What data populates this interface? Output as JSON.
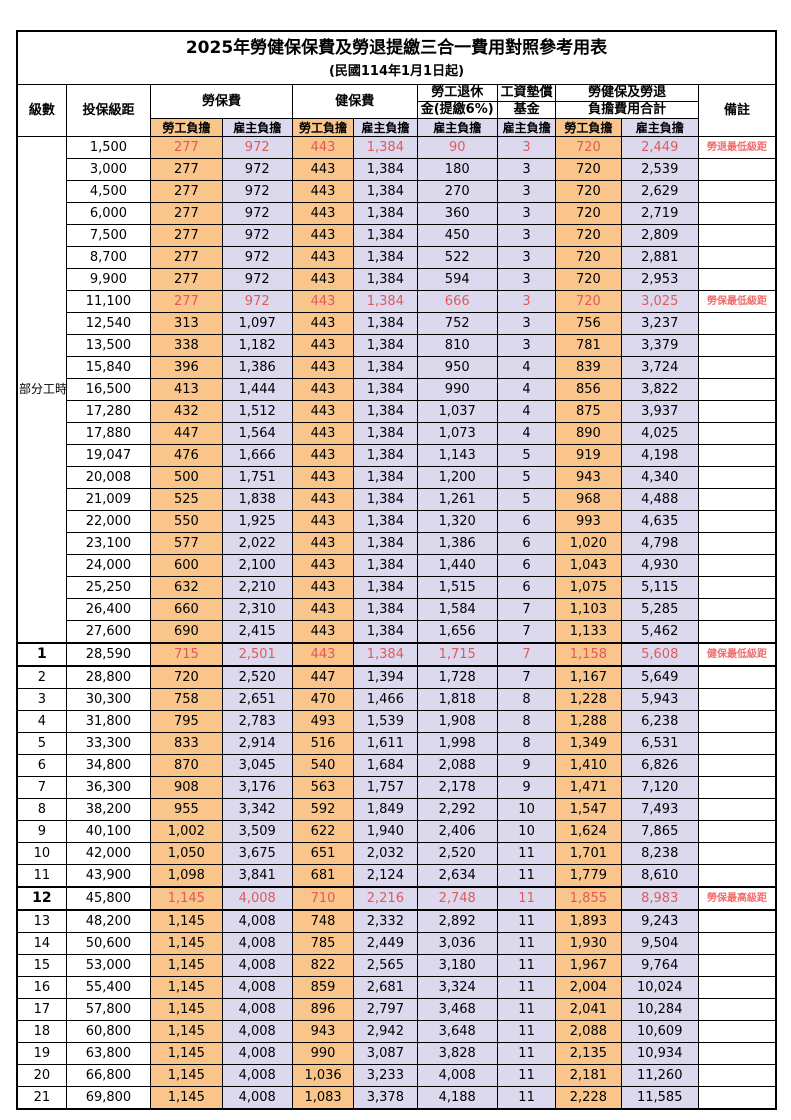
{
  "title": "2025年勞健保保費及勞退提繳三合一費用對照參考用表",
  "subtitle": "(民國114年1月1日起)",
  "header": {
    "level": "級數",
    "bracket": "投保級距",
    "labor_ins": "勞保費",
    "health_ins": "健保費",
    "pension_line1": "勞工退休",
    "pension_line2": "金(提繳6%)",
    "wage_fund_line1": "工資墊償",
    "wage_fund_line2": "基金",
    "total_line1": "勞健保及勞退",
    "total_line2": "負擔費用合計",
    "remark": "備註",
    "employee": "勞工負擔",
    "employer": "雇主負擔"
  },
  "part_time_label": "部分工時",
  "part_time_rowspan": 23,
  "colors": {
    "employee_bg": "#f9c58a",
    "employer_bg": "#dcd9ee",
    "red_value": "#e05a5a",
    "red_remark": "#f26d6d",
    "border": "#000000",
    "background": "#ffffff"
  },
  "rows": [
    {
      "level": "",
      "bracket": "1,500",
      "li_emp": "277",
      "li_er": "972",
      "hi_emp": "443",
      "hi_er": "1,384",
      "pension": "90",
      "fund": "3",
      "tot_emp": "720",
      "tot_er": "2,449",
      "remark": "勞退最低級距",
      "red": true
    },
    {
      "level": "",
      "bracket": "3,000",
      "li_emp": "277",
      "li_er": "972",
      "hi_emp": "443",
      "hi_er": "1,384",
      "pension": "180",
      "fund": "3",
      "tot_emp": "720",
      "tot_er": "2,539",
      "remark": ""
    },
    {
      "level": "",
      "bracket": "4,500",
      "li_emp": "277",
      "li_er": "972",
      "hi_emp": "443",
      "hi_er": "1,384",
      "pension": "270",
      "fund": "3",
      "tot_emp": "720",
      "tot_er": "2,629",
      "remark": ""
    },
    {
      "level": "",
      "bracket": "6,000",
      "li_emp": "277",
      "li_er": "972",
      "hi_emp": "443",
      "hi_er": "1,384",
      "pension": "360",
      "fund": "3",
      "tot_emp": "720",
      "tot_er": "2,719",
      "remark": ""
    },
    {
      "level": "",
      "bracket": "7,500",
      "li_emp": "277",
      "li_er": "972",
      "hi_emp": "443",
      "hi_er": "1,384",
      "pension": "450",
      "fund": "3",
      "tot_emp": "720",
      "tot_er": "2,809",
      "remark": ""
    },
    {
      "level": "",
      "bracket": "8,700",
      "li_emp": "277",
      "li_er": "972",
      "hi_emp": "443",
      "hi_er": "1,384",
      "pension": "522",
      "fund": "3",
      "tot_emp": "720",
      "tot_er": "2,881",
      "remark": ""
    },
    {
      "level": "",
      "bracket": "9,900",
      "li_emp": "277",
      "li_er": "972",
      "hi_emp": "443",
      "hi_er": "1,384",
      "pension": "594",
      "fund": "3",
      "tot_emp": "720",
      "tot_er": "2,953",
      "remark": ""
    },
    {
      "level": "",
      "bracket": "11,100",
      "li_emp": "277",
      "li_er": "972",
      "hi_emp": "443",
      "hi_er": "1,384",
      "pension": "666",
      "fund": "3",
      "tot_emp": "720",
      "tot_er": "3,025",
      "remark": "勞保最低級距",
      "red": true
    },
    {
      "level": "",
      "bracket": "12,540",
      "li_emp": "313",
      "li_er": "1,097",
      "hi_emp": "443",
      "hi_er": "1,384",
      "pension": "752",
      "fund": "3",
      "tot_emp": "756",
      "tot_er": "3,237",
      "remark": ""
    },
    {
      "level": "",
      "bracket": "13,500",
      "li_emp": "338",
      "li_er": "1,182",
      "hi_emp": "443",
      "hi_er": "1,384",
      "pension": "810",
      "fund": "3",
      "tot_emp": "781",
      "tot_er": "3,379",
      "remark": ""
    },
    {
      "level": "",
      "bracket": "15,840",
      "li_emp": "396",
      "li_er": "1,386",
      "hi_emp": "443",
      "hi_er": "1,384",
      "pension": "950",
      "fund": "4",
      "tot_emp": "839",
      "tot_er": "3,724",
      "remark": ""
    },
    {
      "level": "",
      "bracket": "16,500",
      "li_emp": "413",
      "li_er": "1,444",
      "hi_emp": "443",
      "hi_er": "1,384",
      "pension": "990",
      "fund": "4",
      "tot_emp": "856",
      "tot_er": "3,822",
      "remark": ""
    },
    {
      "level": "",
      "bracket": "17,280",
      "li_emp": "432",
      "li_er": "1,512",
      "hi_emp": "443",
      "hi_er": "1,384",
      "pension": "1,037",
      "fund": "4",
      "tot_emp": "875",
      "tot_er": "3,937",
      "remark": ""
    },
    {
      "level": "",
      "bracket": "17,880",
      "li_emp": "447",
      "li_er": "1,564",
      "hi_emp": "443",
      "hi_er": "1,384",
      "pension": "1,073",
      "fund": "4",
      "tot_emp": "890",
      "tot_er": "4,025",
      "remark": ""
    },
    {
      "level": "",
      "bracket": "19,047",
      "li_emp": "476",
      "li_er": "1,666",
      "hi_emp": "443",
      "hi_er": "1,384",
      "pension": "1,143",
      "fund": "5",
      "tot_emp": "919",
      "tot_er": "4,198",
      "remark": ""
    },
    {
      "level": "",
      "bracket": "20,008",
      "li_emp": "500",
      "li_er": "1,751",
      "hi_emp": "443",
      "hi_er": "1,384",
      "pension": "1,200",
      "fund": "5",
      "tot_emp": "943",
      "tot_er": "4,340",
      "remark": ""
    },
    {
      "level": "",
      "bracket": "21,009",
      "li_emp": "525",
      "li_er": "1,838",
      "hi_emp": "443",
      "hi_er": "1,384",
      "pension": "1,261",
      "fund": "5",
      "tot_emp": "968",
      "tot_er": "4,488",
      "remark": ""
    },
    {
      "level": "",
      "bracket": "22,000",
      "li_emp": "550",
      "li_er": "1,925",
      "hi_emp": "443",
      "hi_er": "1,384",
      "pension": "1,320",
      "fund": "6",
      "tot_emp": "993",
      "tot_er": "4,635",
      "remark": ""
    },
    {
      "level": "",
      "bracket": "23,100",
      "li_emp": "577",
      "li_er": "2,022",
      "hi_emp": "443",
      "hi_er": "1,384",
      "pension": "1,386",
      "fund": "6",
      "tot_emp": "1,020",
      "tot_er": "4,798",
      "remark": ""
    },
    {
      "level": "",
      "bracket": "24,000",
      "li_emp": "600",
      "li_er": "2,100",
      "hi_emp": "443",
      "hi_er": "1,384",
      "pension": "1,440",
      "fund": "6",
      "tot_emp": "1,043",
      "tot_er": "4,930",
      "remark": ""
    },
    {
      "level": "",
      "bracket": "25,250",
      "li_emp": "632",
      "li_er": "2,210",
      "hi_emp": "443",
      "hi_er": "1,384",
      "pension": "1,515",
      "fund": "6",
      "tot_emp": "1,075",
      "tot_er": "5,115",
      "remark": ""
    },
    {
      "level": "",
      "bracket": "26,400",
      "li_emp": "660",
      "li_er": "2,310",
      "hi_emp": "443",
      "hi_er": "1,384",
      "pension": "1,584",
      "fund": "7",
      "tot_emp": "1,103",
      "tot_er": "5,285",
      "remark": ""
    },
    {
      "level": "",
      "bracket": "27,600",
      "li_emp": "690",
      "li_er": "2,415",
      "hi_emp": "443",
      "hi_er": "1,384",
      "pension": "1,656",
      "fund": "7",
      "tot_emp": "1,133",
      "tot_er": "5,462",
      "remark": ""
    },
    {
      "level": "1",
      "bracket": "28,590",
      "li_emp": "715",
      "li_er": "2,501",
      "hi_emp": "443",
      "hi_er": "1,384",
      "pension": "1,715",
      "fund": "7",
      "tot_emp": "1,158",
      "tot_er": "5,608",
      "remark": "健保最低級距",
      "red": true,
      "em": true
    },
    {
      "level": "2",
      "bracket": "28,800",
      "li_emp": "720",
      "li_er": "2,520",
      "hi_emp": "447",
      "hi_er": "1,394",
      "pension": "1,728",
      "fund": "7",
      "tot_emp": "1,167",
      "tot_er": "5,649",
      "remark": ""
    },
    {
      "level": "3",
      "bracket": "30,300",
      "li_emp": "758",
      "li_er": "2,651",
      "hi_emp": "470",
      "hi_er": "1,466",
      "pension": "1,818",
      "fund": "8",
      "tot_emp": "1,228",
      "tot_er": "5,943",
      "remark": ""
    },
    {
      "level": "4",
      "bracket": "31,800",
      "li_emp": "795",
      "li_er": "2,783",
      "hi_emp": "493",
      "hi_er": "1,539",
      "pension": "1,908",
      "fund": "8",
      "tot_emp": "1,288",
      "tot_er": "6,238",
      "remark": ""
    },
    {
      "level": "5",
      "bracket": "33,300",
      "li_emp": "833",
      "li_er": "2,914",
      "hi_emp": "516",
      "hi_er": "1,611",
      "pension": "1,998",
      "fund": "8",
      "tot_emp": "1,349",
      "tot_er": "6,531",
      "remark": ""
    },
    {
      "level": "6",
      "bracket": "34,800",
      "li_emp": "870",
      "li_er": "3,045",
      "hi_emp": "540",
      "hi_er": "1,684",
      "pension": "2,088",
      "fund": "9",
      "tot_emp": "1,410",
      "tot_er": "6,826",
      "remark": ""
    },
    {
      "level": "7",
      "bracket": "36,300",
      "li_emp": "908",
      "li_er": "3,176",
      "hi_emp": "563",
      "hi_er": "1,757",
      "pension": "2,178",
      "fund": "9",
      "tot_emp": "1,471",
      "tot_er": "7,120",
      "remark": ""
    },
    {
      "level": "8",
      "bracket": "38,200",
      "li_emp": "955",
      "li_er": "3,342",
      "hi_emp": "592",
      "hi_er": "1,849",
      "pension": "2,292",
      "fund": "10",
      "tot_emp": "1,547",
      "tot_er": "7,493",
      "remark": ""
    },
    {
      "level": "9",
      "bracket": "40,100",
      "li_emp": "1,002",
      "li_er": "3,509",
      "hi_emp": "622",
      "hi_er": "1,940",
      "pension": "2,406",
      "fund": "10",
      "tot_emp": "1,624",
      "tot_er": "7,865",
      "remark": ""
    },
    {
      "level": "10",
      "bracket": "42,000",
      "li_emp": "1,050",
      "li_er": "3,675",
      "hi_emp": "651",
      "hi_er": "2,032",
      "pension": "2,520",
      "fund": "11",
      "tot_emp": "1,701",
      "tot_er": "8,238",
      "remark": ""
    },
    {
      "level": "11",
      "bracket": "43,900",
      "li_emp": "1,098",
      "li_er": "3,841",
      "hi_emp": "681",
      "hi_er": "2,124",
      "pension": "2,634",
      "fund": "11",
      "tot_emp": "1,779",
      "tot_er": "8,610",
      "remark": ""
    },
    {
      "level": "12",
      "bracket": "45,800",
      "li_emp": "1,145",
      "li_er": "4,008",
      "hi_emp": "710",
      "hi_er": "2,216",
      "pension": "2,748",
      "fund": "11",
      "tot_emp": "1,855",
      "tot_er": "8,983",
      "remark": "勞保最高級距",
      "red": true,
      "em": true
    },
    {
      "level": "13",
      "bracket": "48,200",
      "li_emp": "1,145",
      "li_er": "4,008",
      "hi_emp": "748",
      "hi_er": "2,332",
      "pension": "2,892",
      "fund": "11",
      "tot_emp": "1,893",
      "tot_er": "9,243",
      "remark": ""
    },
    {
      "level": "14",
      "bracket": "50,600",
      "li_emp": "1,145",
      "li_er": "4,008",
      "hi_emp": "785",
      "hi_er": "2,449",
      "pension": "3,036",
      "fund": "11",
      "tot_emp": "1,930",
      "tot_er": "9,504",
      "remark": ""
    },
    {
      "level": "15",
      "bracket": "53,000",
      "li_emp": "1,145",
      "li_er": "4,008",
      "hi_emp": "822",
      "hi_er": "2,565",
      "pension": "3,180",
      "fund": "11",
      "tot_emp": "1,967",
      "tot_er": "9,764",
      "remark": ""
    },
    {
      "level": "16",
      "bracket": "55,400",
      "li_emp": "1,145",
      "li_er": "4,008",
      "hi_emp": "859",
      "hi_er": "2,681",
      "pension": "3,324",
      "fund": "11",
      "tot_emp": "2,004",
      "tot_er": "10,024",
      "remark": ""
    },
    {
      "level": "17",
      "bracket": "57,800",
      "li_emp": "1,145",
      "li_er": "4,008",
      "hi_emp": "896",
      "hi_er": "2,797",
      "pension": "3,468",
      "fund": "11",
      "tot_emp": "2,041",
      "tot_er": "10,284",
      "remark": ""
    },
    {
      "level": "18",
      "bracket": "60,800",
      "li_emp": "1,145",
      "li_er": "4,008",
      "hi_emp": "943",
      "hi_er": "2,942",
      "pension": "3,648",
      "fund": "11",
      "tot_emp": "2,088",
      "tot_er": "10,609",
      "remark": ""
    },
    {
      "level": "19",
      "bracket": "63,800",
      "li_emp": "1,145",
      "li_er": "4,008",
      "hi_emp": "990",
      "hi_er": "3,087",
      "pension": "3,828",
      "fund": "11",
      "tot_emp": "2,135",
      "tot_er": "10,934",
      "remark": ""
    },
    {
      "level": "20",
      "bracket": "66,800",
      "li_emp": "1,145",
      "li_er": "4,008",
      "hi_emp": "1,036",
      "hi_er": "3,233",
      "pension": "4,008",
      "fund": "11",
      "tot_emp": "2,181",
      "tot_er": "11,260",
      "remark": ""
    },
    {
      "level": "21",
      "bracket": "69,800",
      "li_emp": "1,145",
      "li_er": "4,008",
      "hi_emp": "1,083",
      "hi_er": "3,378",
      "pension": "4,188",
      "fund": "11",
      "tot_emp": "2,228",
      "tot_er": "11,585",
      "remark": ""
    }
  ]
}
